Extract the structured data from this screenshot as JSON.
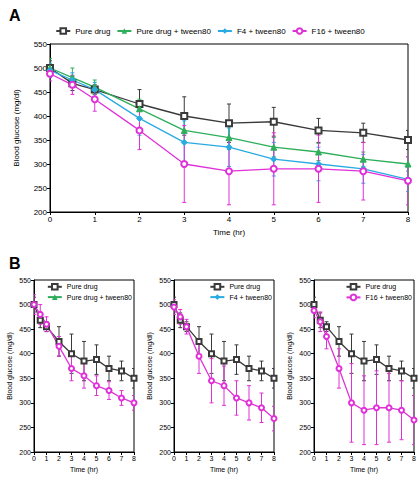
{
  "chart_data": [
    {
      "type": "line",
      "title": "A",
      "x_label": "Time (hr)",
      "y_label": "Blood glucose (mg/dl)",
      "x": [
        0,
        0.5,
        1,
        2,
        3,
        4,
        5,
        6,
        7,
        8
      ],
      "xlim": [
        0,
        8
      ],
      "xticks": [
        0,
        1,
        2,
        3,
        4,
        5,
        6,
        7,
        8
      ],
      "ylim": [
        200,
        550
      ],
      "yticks": [
        200,
        250,
        300,
        350,
        400,
        450,
        500,
        550
      ],
      "grid": false,
      "legend": "top",
      "series": [
        {
          "name": "Pure drug",
          "color": "#3a3a3a",
          "marker": "square",
          "values": [
            500,
            468,
            455,
            425,
            400,
            385,
            388,
            370,
            365,
            350
          ],
          "errors": [
            15,
            15,
            10,
            30,
            40,
            40,
            30,
            25,
            20,
            20
          ]
        },
        {
          "name": "Pure drug + tween80",
          "color": "#2eae5a",
          "marker": "triangle",
          "values": [
            500,
            480,
            460,
            415,
            370,
            355,
            335,
            325,
            310,
            300
          ],
          "errors": [
            20,
            20,
            15,
            20,
            25,
            25,
            20,
            18,
            15,
            15
          ]
        },
        {
          "name": "F4 + tween80",
          "color": "#29abe2",
          "marker": "diamond",
          "values": [
            495,
            475,
            455,
            395,
            345,
            335,
            310,
            300,
            290,
            268
          ],
          "errors": [
            15,
            15,
            15,
            35,
            45,
            40,
            35,
            35,
            30,
            25
          ]
        },
        {
          "name": "F16 + tween80",
          "color": "#e030d8",
          "marker": "circle",
          "values": [
            488,
            465,
            435,
            370,
            300,
            285,
            290,
            290,
            285,
            265
          ],
          "errors": [
            15,
            20,
            25,
            40,
            80,
            70,
            75,
            70,
            60,
            50
          ]
        }
      ]
    },
    {
      "type": "line",
      "title": "B",
      "x_label": "Time (hr)",
      "y_label": "Blood glucose (mg/dl)",
      "x": [
        0,
        0.5,
        1,
        2,
        3,
        4,
        5,
        6,
        7,
        8
      ],
      "xlim": [
        0,
        8
      ],
      "xticks": [
        0,
        1,
        2,
        3,
        4,
        5,
        6,
        7,
        8
      ],
      "ylim": [
        200,
        550
      ],
      "yticks": [
        200,
        250,
        300,
        350,
        400,
        450,
        500,
        550
      ],
      "grid": false,
      "legend": "top-right",
      "series": [
        {
          "name": "Pure drug",
          "color": "#3a3a3a",
          "marker": "square",
          "values": [
            500,
            468,
            455,
            425,
            400,
            385,
            388,
            370,
            365,
            350
          ],
          "errors": [
            15,
            15,
            10,
            30,
            40,
            40,
            30,
            25,
            20,
            20
          ]
        },
        {
          "name": "Pure drug + tween80",
          "color": "#e030d8",
          "marker": "circle",
          "values": [
            500,
            480,
            460,
            415,
            370,
            355,
            335,
            325,
            310,
            300
          ],
          "errors": [
            20,
            20,
            15,
            20,
            25,
            25,
            20,
            18,
            15,
            15
          ]
        }
      ]
    },
    {
      "type": "line",
      "x_label": "Time (hr)",
      "y_label": "Blood glucose (mg/dl)",
      "x": [
        0,
        0.5,
        1,
        2,
        3,
        4,
        5,
        6,
        7,
        8
      ],
      "xlim": [
        0,
        8
      ],
      "xticks": [
        0,
        1,
        2,
        3,
        4,
        5,
        6,
        7,
        8
      ],
      "ylim": [
        200,
        550
      ],
      "yticks": [
        200,
        250,
        300,
        350,
        400,
        450,
        500,
        550
      ],
      "grid": false,
      "legend": "top-right",
      "series": [
        {
          "name": "Pure drug",
          "color": "#3a3a3a",
          "marker": "square",
          "values": [
            500,
            468,
            455,
            425,
            400,
            385,
            388,
            370,
            365,
            350
          ],
          "errors": [
            15,
            15,
            10,
            30,
            40,
            40,
            30,
            25,
            20,
            20
          ]
        },
        {
          "name": "F4 + tween80",
          "color": "#e030d8",
          "marker": "circle",
          "values": [
            495,
            475,
            455,
            395,
            345,
            335,
            310,
            300,
            290,
            268
          ],
          "errors": [
            15,
            15,
            15,
            35,
            45,
            40,
            35,
            35,
            30,
            25
          ]
        }
      ]
    },
    {
      "type": "line",
      "x_label": "Time (hr)",
      "y_label": "Blood glucose (mg/dl)",
      "x": [
        0,
        0.5,
        1,
        2,
        3,
        4,
        5,
        6,
        7,
        8
      ],
      "xlim": [
        0,
        8
      ],
      "xticks": [
        0,
        1,
        2,
        3,
        4,
        5,
        6,
        7,
        8
      ],
      "ylim": [
        200,
        550
      ],
      "yticks": [
        200,
        250,
        300,
        350,
        400,
        450,
        500,
        550
      ],
      "grid": false,
      "legend": "top-right",
      "series": [
        {
          "name": "Pure drug",
          "color": "#3a3a3a",
          "marker": "square",
          "values": [
            500,
            468,
            455,
            425,
            400,
            385,
            388,
            370,
            365,
            350
          ],
          "errors": [
            15,
            15,
            10,
            30,
            40,
            40,
            30,
            25,
            20,
            20
          ]
        },
        {
          "name": "F16 + tween80",
          "color": "#e030d8",
          "marker": "circle",
          "values": [
            488,
            465,
            435,
            370,
            300,
            285,
            290,
            290,
            285,
            265
          ],
          "errors": [
            15,
            20,
            25,
            40,
            80,
            70,
            75,
            70,
            60,
            50
          ]
        }
      ]
    }
  ]
}
